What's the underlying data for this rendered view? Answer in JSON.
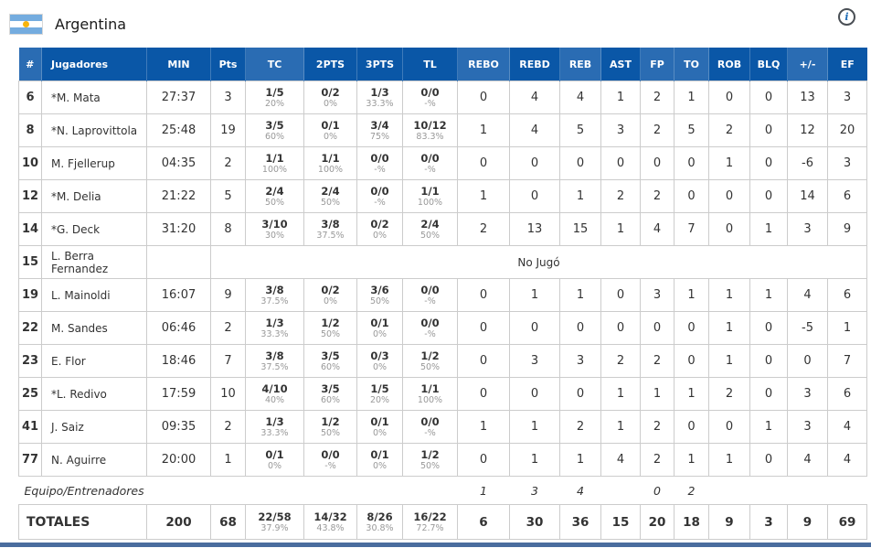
{
  "header": {
    "title": "Argentina",
    "info_icon_glyph": "i",
    "flag_colors": {
      "blue": "#74ACDF",
      "white": "#ffffff",
      "sun": "#F6B40E"
    }
  },
  "colors": {
    "header_dark": "#0a57a7",
    "header_light": "#2a6cb3",
    "border": "#cccccc",
    "text": "#333333",
    "pct_text": "#999999",
    "bottom_bar": "#4a6d9e"
  },
  "table": {
    "columns": [
      {
        "key": "num",
        "label": "#",
        "shade": "light"
      },
      {
        "key": "name",
        "label": "Jugadores",
        "shade": "dark"
      },
      {
        "key": "min",
        "label": "MIN",
        "shade": "dark"
      },
      {
        "key": "pts",
        "label": "Pts",
        "shade": "dark"
      },
      {
        "key": "tc",
        "label": "TC",
        "shade": "light"
      },
      {
        "key": "p2",
        "label": "2PTS",
        "shade": "dark"
      },
      {
        "key": "p3",
        "label": "3PTS",
        "shade": "dark"
      },
      {
        "key": "tl",
        "label": "TL",
        "shade": "dark"
      },
      {
        "key": "rebo",
        "label": "REBO",
        "shade": "light"
      },
      {
        "key": "rebd",
        "label": "REBD",
        "shade": "dark"
      },
      {
        "key": "reb",
        "label": "REB",
        "shade": "light"
      },
      {
        "key": "ast",
        "label": "AST",
        "shade": "dark"
      },
      {
        "key": "fp",
        "label": "FP",
        "shade": "light"
      },
      {
        "key": "to",
        "label": "TO",
        "shade": "light"
      },
      {
        "key": "rob",
        "label": "ROB",
        "shade": "dark"
      },
      {
        "key": "blq",
        "label": "BLQ",
        "shade": "dark"
      },
      {
        "key": "pm",
        "label": "+/-",
        "shade": "light"
      },
      {
        "key": "ef",
        "label": "EF",
        "shade": "dark"
      }
    ],
    "rows": [
      {
        "num": "6",
        "name": "*M. Mata",
        "min": "27:37",
        "pts": "3",
        "tc": {
          "v": "1/5",
          "p": "20%"
        },
        "p2": {
          "v": "0/2",
          "p": "0%"
        },
        "p3": {
          "v": "1/3",
          "p": "33.3%"
        },
        "tl": {
          "v": "0/0",
          "p": "-%"
        },
        "rebo": "0",
        "rebd": "4",
        "reb": "4",
        "ast": "1",
        "fp": "2",
        "to": "1",
        "rob": "0",
        "blq": "0",
        "pm": "13",
        "ef": "3"
      },
      {
        "num": "8",
        "name": "*N. Laprovittola",
        "min": "25:48",
        "pts": "19",
        "tc": {
          "v": "3/5",
          "p": "60%"
        },
        "p2": {
          "v": "0/1",
          "p": "0%"
        },
        "p3": {
          "v": "3/4",
          "p": "75%"
        },
        "tl": {
          "v": "10/12",
          "p": "83.3%"
        },
        "rebo": "1",
        "rebd": "4",
        "reb": "5",
        "ast": "3",
        "fp": "2",
        "to": "5",
        "rob": "2",
        "blq": "0",
        "pm": "12",
        "ef": "20"
      },
      {
        "num": "10",
        "name": "M. Fjellerup",
        "min": "04:35",
        "pts": "2",
        "tc": {
          "v": "1/1",
          "p": "100%"
        },
        "p2": {
          "v": "1/1",
          "p": "100%"
        },
        "p3": {
          "v": "0/0",
          "p": "-%"
        },
        "tl": {
          "v": "0/0",
          "p": "-%"
        },
        "rebo": "0",
        "rebd": "0",
        "reb": "0",
        "ast": "0",
        "fp": "0",
        "to": "0",
        "rob": "1",
        "blq": "0",
        "pm": "-6",
        "ef": "3"
      },
      {
        "num": "12",
        "name": "*M. Delia",
        "min": "21:22",
        "pts": "5",
        "tc": {
          "v": "2/4",
          "p": "50%"
        },
        "p2": {
          "v": "2/4",
          "p": "50%"
        },
        "p3": {
          "v": "0/0",
          "p": "-%"
        },
        "tl": {
          "v": "1/1",
          "p": "100%"
        },
        "rebo": "1",
        "rebd": "0",
        "reb": "1",
        "ast": "2",
        "fp": "2",
        "to": "0",
        "rob": "0",
        "blq": "0",
        "pm": "14",
        "ef": "6"
      },
      {
        "num": "14",
        "name": "*G. Deck",
        "min": "31:20",
        "pts": "8",
        "tc": {
          "v": "3/10",
          "p": "30%"
        },
        "p2": {
          "v": "3/8",
          "p": "37.5%"
        },
        "p3": {
          "v": "0/2",
          "p": "0%"
        },
        "tl": {
          "v": "2/4",
          "p": "50%"
        },
        "rebo": "2",
        "rebd": "13",
        "reb": "15",
        "ast": "1",
        "fp": "4",
        "to": "7",
        "rob": "0",
        "blq": "1",
        "pm": "3",
        "ef": "9"
      },
      {
        "num": "15",
        "name": "L. Berra Fernandez",
        "dnp": true,
        "status": "No Jugó"
      },
      {
        "num": "19",
        "name": "L. Mainoldi",
        "min": "16:07",
        "pts": "9",
        "tc": {
          "v": "3/8",
          "p": "37.5%"
        },
        "p2": {
          "v": "0/2",
          "p": "0%"
        },
        "p3": {
          "v": "3/6",
          "p": "50%"
        },
        "tl": {
          "v": "0/0",
          "p": "-%"
        },
        "rebo": "0",
        "rebd": "1",
        "reb": "1",
        "ast": "0",
        "fp": "3",
        "to": "1",
        "rob": "1",
        "blq": "1",
        "pm": "4",
        "ef": "6"
      },
      {
        "num": "22",
        "name": "M. Sandes",
        "min": "06:46",
        "pts": "2",
        "tc": {
          "v": "1/3",
          "p": "33.3%"
        },
        "p2": {
          "v": "1/2",
          "p": "50%"
        },
        "p3": {
          "v": "0/1",
          "p": "0%"
        },
        "tl": {
          "v": "0/0",
          "p": "-%"
        },
        "rebo": "0",
        "rebd": "0",
        "reb": "0",
        "ast": "0",
        "fp": "0",
        "to": "0",
        "rob": "1",
        "blq": "0",
        "pm": "-5",
        "ef": "1"
      },
      {
        "num": "23",
        "name": "E. Flor",
        "min": "18:46",
        "pts": "7",
        "tc": {
          "v": "3/8",
          "p": "37.5%"
        },
        "p2": {
          "v": "3/5",
          "p": "60%"
        },
        "p3": {
          "v": "0/3",
          "p": "0%"
        },
        "tl": {
          "v": "1/2",
          "p": "50%"
        },
        "rebo": "0",
        "rebd": "3",
        "reb": "3",
        "ast": "2",
        "fp": "2",
        "to": "0",
        "rob": "1",
        "blq": "0",
        "pm": "0",
        "ef": "7"
      },
      {
        "num": "25",
        "name": "*L. Redivo",
        "min": "17:59",
        "pts": "10",
        "tc": {
          "v": "4/10",
          "p": "40%"
        },
        "p2": {
          "v": "3/5",
          "p": "60%"
        },
        "p3": {
          "v": "1/5",
          "p": "20%"
        },
        "tl": {
          "v": "1/1",
          "p": "100%"
        },
        "rebo": "0",
        "rebd": "0",
        "reb": "0",
        "ast": "1",
        "fp": "1",
        "to": "1",
        "rob": "2",
        "blq": "0",
        "pm": "3",
        "ef": "6"
      },
      {
        "num": "41",
        "name": "J. Saiz",
        "min": "09:35",
        "pts": "2",
        "tc": {
          "v": "1/3",
          "p": "33.3%"
        },
        "p2": {
          "v": "1/2",
          "p": "50%"
        },
        "p3": {
          "v": "0/1",
          "p": "0%"
        },
        "tl": {
          "v": "0/0",
          "p": "-%"
        },
        "rebo": "1",
        "rebd": "1",
        "reb": "2",
        "ast": "1",
        "fp": "2",
        "to": "0",
        "rob": "0",
        "blq": "1",
        "pm": "3",
        "ef": "4"
      },
      {
        "num": "77",
        "name": "N. Aguirre",
        "min": "20:00",
        "pts": "1",
        "tc": {
          "v": "0/1",
          "p": "0%"
        },
        "p2": {
          "v": "0/0",
          "p": "-%"
        },
        "p3": {
          "v": "0/1",
          "p": "0%"
        },
        "tl": {
          "v": "1/2",
          "p": "50%"
        },
        "rebo": "0",
        "rebd": "1",
        "reb": "1",
        "ast": "4",
        "fp": "2",
        "to": "1",
        "rob": "1",
        "blq": "0",
        "pm": "4",
        "ef": "4"
      }
    ],
    "team_row": {
      "label": "Equipo/Entrenadores",
      "rebo": "1",
      "rebd": "3",
      "reb": "4",
      "ast": "",
      "fp": "0",
      "to": "2",
      "rob": "",
      "blq": "",
      "pm": "",
      "ef": ""
    },
    "totals": {
      "label": "TOTALES",
      "min": "200",
      "pts": "68",
      "tc": {
        "v": "22/58",
        "p": "37.9%"
      },
      "p2": {
        "v": "14/32",
        "p": "43.8%"
      },
      "p3": {
        "v": "8/26",
        "p": "30.8%"
      },
      "tl": {
        "v": "16/22",
        "p": "72.7%"
      },
      "rebo": "6",
      "rebd": "30",
      "reb": "36",
      "ast": "15",
      "fp": "20",
      "to": "18",
      "rob": "9",
      "blq": "3",
      "pm": "9",
      "ef": "69"
    }
  }
}
